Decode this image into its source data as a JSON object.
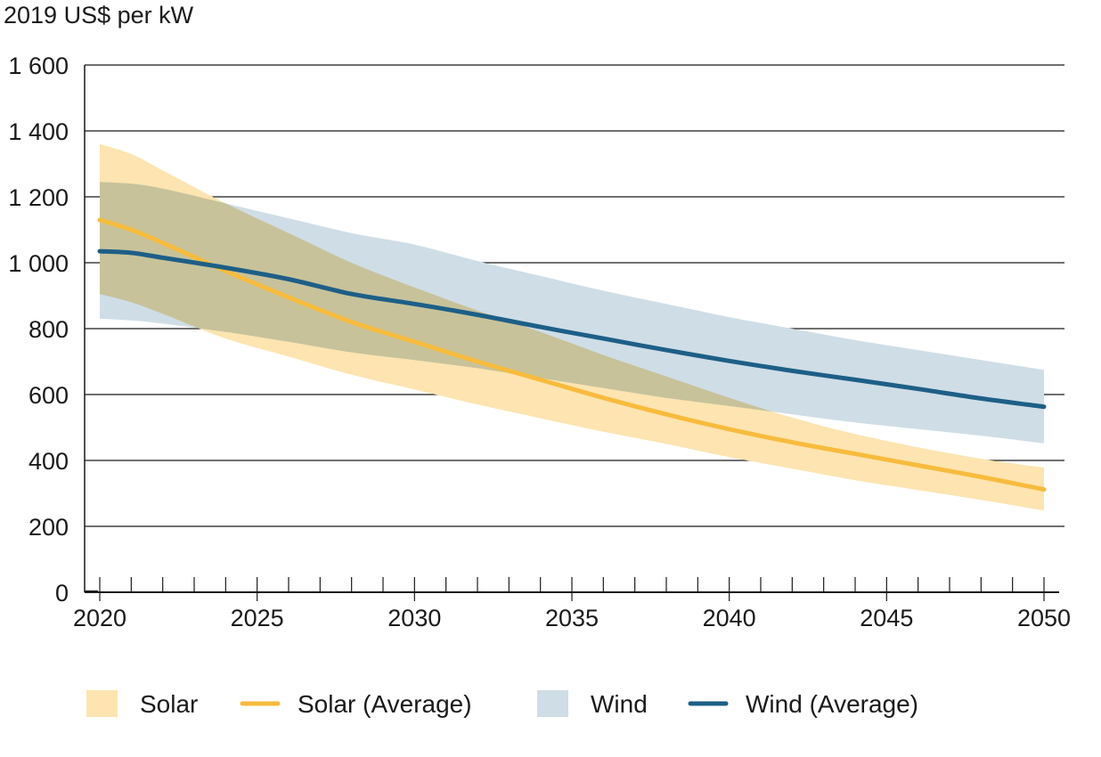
{
  "chart_data": {
    "type": "area",
    "ylabel": "2019 US$ per kW",
    "xlim": [
      2020,
      2050
    ],
    "ylim": [
      0,
      1600
    ],
    "y_ticks": [
      0,
      200,
      400,
      600,
      800,
      1000,
      1200,
      1400,
      1600
    ],
    "y_tick_labels": [
      "0",
      "200",
      "400",
      "600",
      "800",
      "1 000",
      "1 200",
      "1 400",
      "1 600"
    ],
    "x_ticks": [
      2020,
      2025,
      2030,
      2035,
      2040,
      2045,
      2050
    ],
    "x_tick_labels": [
      "2020",
      "2025",
      "2030",
      "2035",
      "2040",
      "2045",
      "2050"
    ],
    "grid": "horizontal",
    "legend_position": "bottom",
    "colors": {
      "solar_band": "#fde4b0",
      "solar_line": "#f7bb3d",
      "wind_band": "#cfdde6",
      "wind_line": "#1d5f87",
      "overlap": "#c7c29a",
      "axis": "#1a1a1a"
    },
    "series": [
      {
        "name": "Solar",
        "kind": "band",
        "x": [
          2020,
          2021,
          2022,
          2024,
          2026,
          2028,
          2030,
          2032,
          2034,
          2036,
          2038,
          2040,
          2042,
          2044,
          2046,
          2048,
          2050
        ],
        "upper": [
          1360,
          1330,
          1280,
          1180,
          1090,
          1000,
          925,
          855,
          790,
          720,
          655,
          590,
          530,
          480,
          440,
          405,
          378
        ],
        "lower": [
          905,
          880,
          845,
          770,
          715,
          660,
          615,
          570,
          528,
          487,
          450,
          410,
          375,
          340,
          310,
          280,
          248
        ]
      },
      {
        "name": "Solar (Average)",
        "kind": "line",
        "x": [
          2020,
          2021,
          2022,
          2024,
          2026,
          2028,
          2030,
          2032,
          2034,
          2036,
          2038,
          2040,
          2042,
          2044,
          2046,
          2048,
          2050
        ],
        "y": [
          1130,
          1100,
          1060,
          975,
          895,
          820,
          760,
          700,
          645,
          590,
          540,
          495,
          455,
          420,
          385,
          350,
          312
        ]
      },
      {
        "name": "Wind",
        "kind": "band",
        "x": [
          2020,
          2021,
          2022,
          2024,
          2026,
          2028,
          2030,
          2032,
          2034,
          2036,
          2038,
          2040,
          2042,
          2044,
          2046,
          2048,
          2050
        ],
        "upper": [
          1245,
          1240,
          1225,
          1180,
          1135,
          1090,
          1055,
          1005,
          960,
          915,
          875,
          835,
          800,
          765,
          735,
          705,
          675
        ],
        "lower": [
          830,
          825,
          815,
          790,
          760,
          728,
          705,
          680,
          650,
          620,
          590,
          565,
          540,
          515,
          495,
          475,
          452
        ]
      },
      {
        "name": "Wind (Average)",
        "kind": "line",
        "x": [
          2020,
          2021,
          2022,
          2024,
          2026,
          2028,
          2030,
          2032,
          2034,
          2036,
          2038,
          2040,
          2042,
          2044,
          2046,
          2048,
          2050
        ],
        "y": [
          1035,
          1030,
          1015,
          985,
          950,
          905,
          875,
          842,
          805,
          770,
          735,
          702,
          672,
          645,
          617,
          588,
          563
        ]
      }
    ],
    "legend": [
      {
        "label": "Solar",
        "swatch": "band",
        "color": "#fde4b0"
      },
      {
        "label": "Solar (Average)",
        "swatch": "line",
        "color": "#f7bb3d"
      },
      {
        "label": "Wind",
        "swatch": "band",
        "color": "#cfdde6"
      },
      {
        "label": "Wind (Average)",
        "swatch": "line",
        "color": "#1d5f87"
      }
    ]
  }
}
